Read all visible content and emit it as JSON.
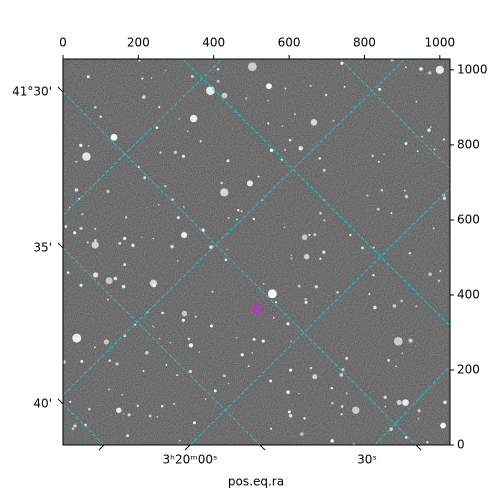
{
  "chart_data": {
    "type": "image",
    "xlabel": "pos.eq.ra",
    "xlim": [
      0,
      1027
    ],
    "ylim": [
      0,
      1029
    ],
    "xticks": [
      0,
      200,
      400,
      600,
      800,
      1000
    ],
    "yticks": [
      0,
      200,
      400,
      600,
      800,
      1000
    ],
    "ra_tick_labels": [
      "3ʰ20ᵐ00ˢ",
      "30ˢ"
    ],
    "dec_tick_labels": [
      "41°30'",
      "35'",
      "40'"
    ],
    "marker": {
      "x": 517,
      "y": 363,
      "color": "#ff00ff"
    },
    "grid_color": "#17c4c4"
  }
}
